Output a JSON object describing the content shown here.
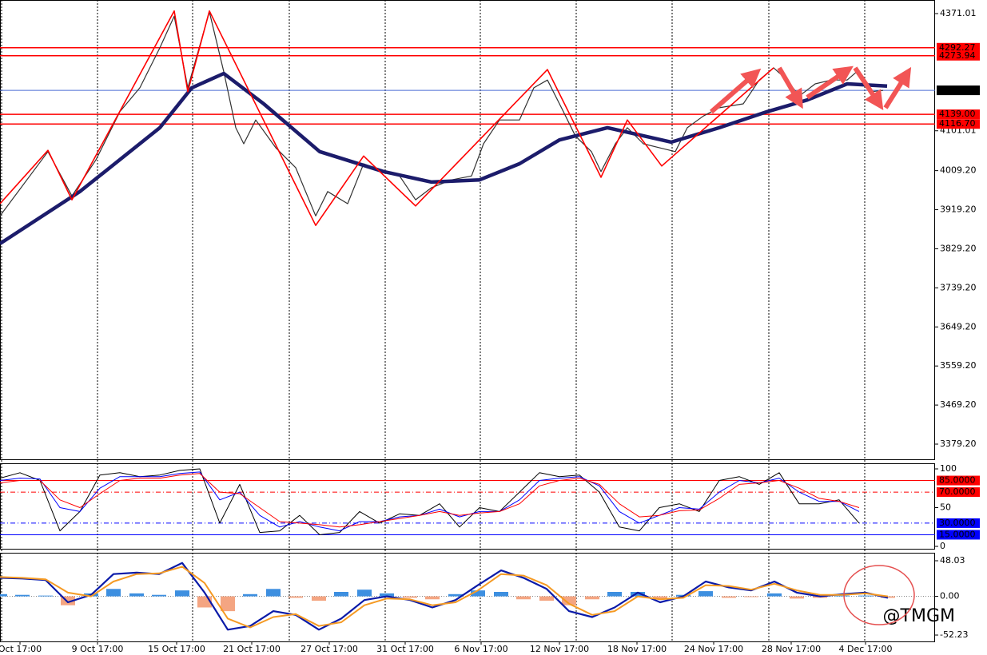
{
  "chart_data": [
    {
      "type": "line",
      "xlim": [
        0,
        1170
      ],
      "ylim": [
        3342.4,
        4402.3
      ],
      "yticks": [
        {
          "value": 4371.01,
          "label": "4371.01"
        },
        {
          "value": 4101.01,
          "label": "4101.01"
        },
        {
          "value": 4009.2,
          "label": "4009.20"
        },
        {
          "value": 3919.2,
          "label": "3919.20"
        },
        {
          "value": 3829.2,
          "label": "3829.20"
        },
        {
          "value": 3739.2,
          "label": "3739.20"
        },
        {
          "value": 3649.2,
          "label": "3649.20"
        },
        {
          "value": 3559.2,
          "label": "3559.20"
        },
        {
          "value": 3469.2,
          "label": "3469.20"
        },
        {
          "value": 3379.2,
          "label": "3379.20"
        }
      ],
      "xgrid": [
        2,
        122,
        241,
        362,
        482,
        601,
        721,
        841,
        962,
        1082
      ],
      "levels": [
        {
          "value": 4292.27,
          "label": "4292.27",
          "color": "#ff0000"
        },
        {
          "value": 4273.94,
          "label": "4273.94",
          "color": "#ff0000"
        },
        {
          "value": 4194.2,
          "label": "4194.20",
          "color": "#4a6cd4"
        },
        {
          "value": 4139.0,
          "label": "4139.00",
          "color": "#ff0000"
        },
        {
          "value": 4116.7,
          "label": "4116.70",
          "color": "#ff0000"
        }
      ],
      "series": [
        {
          "kind": "line",
          "color": "#333333",
          "width": 1.2,
          "x": [
            0,
            60,
            90,
            120,
            150,
            175,
            200,
            218,
            235,
            262,
            280,
            295,
            305,
            320,
            345,
            370,
            395,
            410,
            435,
            455,
            480,
            500,
            520,
            540,
            565,
            590,
            605,
            625,
            650,
            668,
            685,
            705,
            720,
            740,
            752,
            770,
            785,
            805,
            825,
            845,
            860,
            880,
            900,
            930,
            950,
            968,
            985,
            1000,
            1020,
            1040,
            1060,
            1072,
            1090,
            1105
          ],
          "values": [
            3905,
            4053,
            3951,
            4034,
            4145,
            4200,
            4292,
            4365,
            4200,
            4375,
            4237,
            4108,
            4071,
            4126,
            4062,
            4016,
            3905,
            3961,
            3933,
            4025,
            4007,
            3997,
            3942,
            3970,
            3988,
            3997,
            4071,
            4126,
            4126,
            4200,
            4218,
            4145,
            4089,
            4053,
            4007,
            4071,
            4108,
            4071,
            4062,
            4053,
            4108,
            4135,
            4154,
            4163,
            4218,
            4246,
            4218,
            4181,
            4209,
            4218,
            4218,
            4237,
            4191,
            4194
          ]
        },
        {
          "kind": "line",
          "color": "#1c1c6b",
          "width": 4.5,
          "x": [
            0,
            100,
            200,
            240,
            280,
            330,
            400,
            480,
            540,
            600,
            650,
            700,
            760,
            840,
            900,
            960,
            1010,
            1060,
            1110
          ],
          "values": [
            3841,
            3961,
            4108,
            4200,
            4233,
            4163,
            4053,
            4007,
            3983,
            3988,
            4025,
            4080,
            4108,
            4075,
            4108,
            4145,
            4172,
            4209,
            4204
          ]
        },
        {
          "kind": "line",
          "color": "#ff0000",
          "width": 1.6,
          "x": [
            0,
            60,
            90,
            218,
            235,
            262,
            395,
            455,
            520,
            685,
            752,
            785,
            828,
            968
          ],
          "values": [
            3933,
            4056,
            3942,
            4377,
            4191,
            4377,
            3883,
            4043,
            3928,
            4242,
            3994,
            4126,
            4020,
            4246
          ]
        }
      ]
    },
    {
      "type": "line",
      "xlim": [
        0,
        1170
      ],
      "ylim": [
        -4.1,
        107.2
      ],
      "yticks": [
        100,
        50,
        0
      ],
      "levels": [
        {
          "value": 85,
          "label": "85.0000",
          "color": "#ff0000",
          "dash": "solid"
        },
        {
          "value": 70,
          "label": "70.0000",
          "color": "#ff0000",
          "dash": "dashdot"
        },
        {
          "value": 30,
          "label": "30.0000",
          "color": "#0000ff",
          "dash": "dashdot"
        },
        {
          "value": 15,
          "label": "15.0000",
          "color": "#0000ff",
          "dash": "solid"
        }
      ],
      "series": [
        {
          "kind": "line",
          "color": "#000000",
          "width": 1,
          "x": [
            0,
            25,
            50,
            75,
            100,
            125,
            150,
            175,
            200,
            225,
            250,
            275,
            300,
            325,
            350,
            375,
            400,
            425,
            450,
            475,
            500,
            525,
            550,
            575,
            600,
            625,
            650,
            675,
            700,
            725,
            750,
            775,
            800,
            825,
            850,
            875,
            900,
            925,
            950,
            975,
            1000,
            1025,
            1050,
            1075
          ],
          "values": [
            88,
            95,
            85,
            20,
            45,
            92,
            95,
            90,
            92,
            98,
            100,
            30,
            80,
            18,
            20,
            40,
            15,
            18,
            45,
            30,
            42,
            40,
            55,
            25,
            50,
            45,
            70,
            95,
            90,
            92,
            70,
            25,
            20,
            50,
            55,
            45,
            85,
            90,
            80,
            95,
            55,
            55,
            60,
            30
          ]
        },
        {
          "kind": "line",
          "color": "#0000ff",
          "width": 1,
          "x": [
            0,
            25,
            50,
            75,
            100,
            125,
            150,
            175,
            200,
            225,
            250,
            275,
            300,
            325,
            350,
            375,
            400,
            425,
            450,
            475,
            500,
            525,
            550,
            575,
            600,
            625,
            650,
            675,
            700,
            725,
            750,
            775,
            800,
            825,
            850,
            875,
            900,
            925,
            950,
            975,
            1000,
            1025,
            1050,
            1075
          ],
          "values": [
            85,
            88,
            87,
            50,
            45,
            75,
            90,
            90,
            90,
            94,
            96,
            60,
            70,
            40,
            25,
            32,
            25,
            20,
            32,
            32,
            38,
            40,
            48,
            38,
            45,
            45,
            60,
            85,
            88,
            90,
            78,
            45,
            30,
            40,
            50,
            48,
            70,
            85,
            82,
            88,
            70,
            58,
            58,
            45
          ]
        },
        {
          "kind": "line",
          "color": "#ff0000",
          "width": 1,
          "x": [
            0,
            25,
            50,
            75,
            100,
            125,
            150,
            175,
            200,
            225,
            250,
            275,
            300,
            325,
            350,
            375,
            400,
            425,
            450,
            475,
            500,
            525,
            550,
            575,
            600,
            625,
            650,
            675,
            700,
            725,
            750,
            775,
            800,
            825,
            850,
            875,
            900,
            925,
            950,
            975,
            1000,
            1025,
            1050,
            1075
          ],
          "values": [
            82,
            85,
            85,
            60,
            50,
            68,
            85,
            88,
            88,
            92,
            94,
            70,
            68,
            50,
            32,
            30,
            28,
            25,
            28,
            32,
            36,
            40,
            45,
            40,
            43,
            45,
            55,
            78,
            85,
            88,
            80,
            55,
            38,
            40,
            46,
            47,
            62,
            80,
            82,
            85,
            75,
            62,
            58,
            50
          ]
        }
      ]
    },
    {
      "type": "line",
      "xlim": [
        0,
        1170
      ],
      "ylim": [
        -61.9,
        58.8
      ],
      "yticks": [
        48.03,
        {
          "value": 0,
          "label": "0.00"
        },
        -52.23
      ],
      "xticks": [
        {
          "value": 25,
          "label": "Oct 17:00"
        },
        {
          "value": 122,
          "label": "9 Oct 17:00"
        },
        {
          "value": 221,
          "label": "15 Oct 17:00"
        },
        {
          "value": 315,
          "label": "21 Oct 17:00"
        },
        {
          "value": 412,
          "label": "27 Oct 17:00"
        },
        {
          "value": 507,
          "label": "31 Oct 17:00"
        },
        {
          "value": 602,
          "label": "6 Nov 17:00"
        },
        {
          "value": 700,
          "label": "12 Nov 17:00"
        },
        {
          "value": 797,
          "label": "18 Nov 17:00"
        },
        {
          "value": 893,
          "label": "24 Nov 17:00"
        },
        {
          "value": 990,
          "label": "28 Nov 17:00"
        },
        {
          "value": 1083,
          "label": "4 Dec 17:00"
        }
      ],
      "watermark": "@TMGM",
      "series": [
        {
          "kind": "bar",
          "color": "#3d8fe0",
          "neg_color": "#f4a582",
          "x": [
            0,
            28,
            57,
            85,
            114,
            142,
            171,
            199,
            228,
            256,
            285,
            313,
            342,
            370,
            399,
            427,
            456,
            484,
            513,
            541,
            570,
            598,
            627,
            655,
            684,
            712,
            741,
            769,
            798,
            826,
            855,
            883,
            912,
            940,
            969,
            997,
            1026,
            1054,
            1083,
            1111
          ],
          "values": [
            3,
            2,
            1,
            -12,
            4,
            10,
            4,
            2,
            8,
            -15,
            -20,
            3,
            10,
            -2,
            -6,
            6,
            9,
            4,
            -2,
            -4,
            3,
            8,
            6,
            -4,
            -6,
            -12,
            -4,
            6,
            6,
            -4,
            2,
            7,
            -2,
            -1,
            4,
            -3,
            -2,
            1,
            1,
            -2
          ]
        },
        {
          "kind": "line",
          "color": "#0a1aa8",
          "width": 2.2,
          "x": [
            0,
            28,
            57,
            85,
            114,
            142,
            171,
            199,
            228,
            256,
            285,
            313,
            342,
            370,
            399,
            427,
            456,
            484,
            513,
            541,
            570,
            598,
            627,
            655,
            684,
            712,
            741,
            769,
            798,
            826,
            855,
            883,
            912,
            940,
            969,
            997,
            1026,
            1054,
            1083,
            1111
          ],
          "values": [
            25,
            24,
            22,
            -8,
            2,
            30,
            32,
            30,
            45,
            5,
            -45,
            -40,
            -20,
            -25,
            -45,
            -30,
            -5,
            0,
            -5,
            -15,
            -5,
            15,
            35,
            25,
            10,
            -20,
            -28,
            -15,
            5,
            -8,
            0,
            20,
            12,
            8,
            20,
            5,
            0,
            3,
            5,
            -2
          ]
        },
        {
          "kind": "line",
          "color": "#f59a23",
          "width": 2,
          "x": [
            0,
            28,
            57,
            85,
            114,
            142,
            171,
            199,
            228,
            256,
            285,
            313,
            342,
            370,
            399,
            427,
            456,
            484,
            513,
            541,
            570,
            598,
            627,
            655,
            684,
            712,
            741,
            769,
            798,
            826,
            855,
            883,
            912,
            940,
            969,
            997,
            1026,
            1054,
            1083,
            1111
          ],
          "values": [
            26,
            25,
            23,
            5,
            0,
            20,
            30,
            31,
            40,
            18,
            -30,
            -42,
            -28,
            -24,
            -40,
            -35,
            -12,
            -3,
            -4,
            -12,
            -8,
            8,
            30,
            28,
            15,
            -10,
            -25,
            -20,
            0,
            -4,
            -2,
            15,
            14,
            9,
            17,
            8,
            2,
            2,
            4,
            0
          ]
        }
      ]
    }
  ]
}
